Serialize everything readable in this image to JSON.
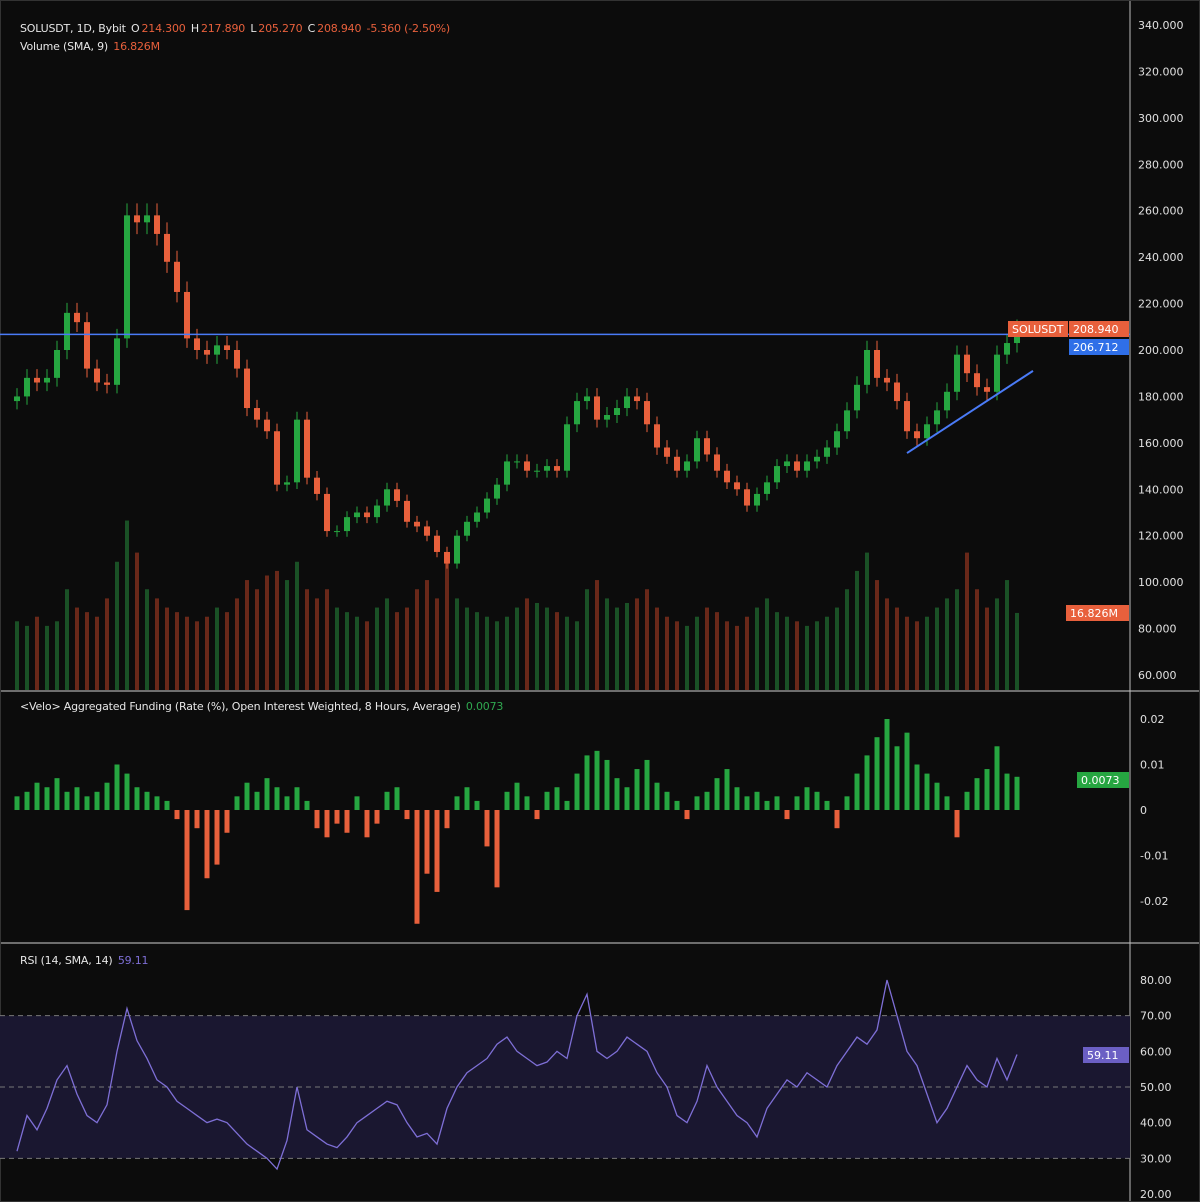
{
  "header": {
    "symbol": "SOLUSDT, 1D, Bybit",
    "o_label": "O",
    "open": "214.300",
    "h_label": "H",
    "high": "217.890",
    "l_label": "L",
    "low": "205.270",
    "c_label": "C",
    "close": "208.940",
    "change": "-5.360 (-2.50%)",
    "volume_label": "Volume (SMA, 9)",
    "volume_value": "16.826M"
  },
  "funding_pane": {
    "title": "<Velo> Aggregated Funding (Rate (%), Open Interest Weighted, 8 Hours, Average)",
    "value": "0.0073"
  },
  "rsi_pane": {
    "title": "RSI (14, SMA, 14)",
    "value": "59.11"
  },
  "tags": {
    "symbol_tag": "SOLUSDT",
    "last_price": "208.940",
    "hline_price": "206.712",
    "volume": "16.826M",
    "funding": "0.0073",
    "rsi": "59.11"
  },
  "colors": {
    "up": "#26a641",
    "down": "#e8603c",
    "hline": "#4a7bf7",
    "rsi": "#7e6fd6",
    "background": "#0c0c0c"
  },
  "chart_data": [
    {
      "type": "candlestick",
      "title": "SOLUSDT, 1D, Bybit",
      "ylim": [
        60,
        340
      ],
      "yticks": [
        "340.000",
        "320.000",
        "300.000",
        "280.000",
        "260.000",
        "240.000",
        "220.000",
        "200.000",
        "180.000",
        "160.000",
        "140.000",
        "120.000",
        "100.000",
        "80.000",
        "60.000"
      ],
      "close": [
        180,
        188,
        186,
        188,
        200,
        216,
        212,
        192,
        186,
        185,
        205,
        258,
        255,
        258,
        250,
        238,
        225,
        205,
        200,
        198,
        202,
        200,
        192,
        175,
        170,
        165,
        142,
        143,
        170,
        145,
        138,
        122,
        122,
        128,
        130,
        128,
        133,
        140,
        135,
        126,
        124,
        120,
        113,
        108,
        120,
        126,
        130,
        136,
        142,
        152,
        152,
        148,
        148,
        150,
        148,
        168,
        178,
        180,
        170,
        172,
        175,
        180,
        178,
        168,
        158,
        154,
        148,
        152,
        162,
        155,
        148,
        143,
        140,
        133,
        138,
        143,
        150,
        152,
        148,
        152,
        154,
        158,
        165,
        174,
        185,
        200,
        188,
        186,
        178,
        165,
        162,
        168,
        174,
        182,
        198,
        190,
        184,
        182,
        198,
        203,
        208.94
      ],
      "volume_millions": [
        15,
        14,
        16,
        14,
        15,
        22,
        18,
        17,
        16,
        20,
        28,
        37,
        30,
        22,
        20,
        18,
        17,
        16,
        15,
        16,
        18,
        17,
        20,
        24,
        22,
        25,
        26,
        24,
        28,
        22,
        20,
        22,
        18,
        17,
        16,
        15,
        18,
        20,
        17,
        18,
        22,
        24,
        20,
        28,
        20,
        18,
        17,
        16,
        15,
        16,
        18,
        20,
        19,
        18,
        17,
        16,
        15,
        22,
        24,
        20,
        18,
        19,
        20,
        22,
        18,
        16,
        15,
        14,
        16,
        18,
        17,
        15,
        14,
        16,
        18,
        20,
        17,
        16,
        15,
        14,
        15,
        16,
        18,
        22,
        26,
        30,
        24,
        20,
        18,
        16,
        15,
        16,
        18,
        20,
        22,
        30,
        22,
        18,
        20,
        24,
        16.826
      ],
      "horizontal_line": 206.712,
      "trendline": {
        "from": [
          89,
          155.6
        ],
        "to": [
          101.6,
          191
        ]
      }
    },
    {
      "type": "bar",
      "title": "<Velo> Aggregated Funding (Rate (%), Open Interest Weighted, 8 Hours, Average)",
      "ylim": [
        -0.03,
        0.025
      ],
      "yticks": [
        "0.02",
        "0.01",
        "0",
        "-0.01",
        "-0.02"
      ],
      "values": [
        0.003,
        0.004,
        0.006,
        0.005,
        0.007,
        0.004,
        0.005,
        0.003,
        0.004,
        0.006,
        0.01,
        0.008,
        0.005,
        0.004,
        0.003,
        0.002,
        -0.002,
        -0.022,
        -0.004,
        -0.015,
        -0.012,
        -0.005,
        0.003,
        0.006,
        0.004,
        0.007,
        0.005,
        0.003,
        0.005,
        0.002,
        -0.004,
        -0.006,
        -0.003,
        -0.005,
        0.003,
        -0.006,
        -0.003,
        0.004,
        0.005,
        -0.002,
        -0.025,
        -0.014,
        -0.018,
        -0.004,
        0.003,
        0.005,
        0.002,
        -0.008,
        -0.017,
        0.004,
        0.006,
        0.003,
        -0.002,
        0.004,
        0.005,
        0.002,
        0.008,
        0.012,
        0.013,
        0.011,
        0.007,
        0.005,
        0.009,
        0.011,
        0.006,
        0.004,
        0.002,
        -0.002,
        0.003,
        0.004,
        0.007,
        0.009,
        0.005,
        0.003,
        0.004,
        0.002,
        0.003,
        -0.002,
        0.003,
        0.005,
        0.004,
        0.002,
        -0.004,
        0.003,
        0.008,
        0.012,
        0.016,
        0.02,
        0.014,
        0.017,
        0.01,
        0.008,
        0.006,
        0.003,
        -0.006,
        0.004,
        0.007,
        0.009,
        0.014,
        0.008,
        0.0073
      ]
    },
    {
      "type": "line",
      "title": "RSI (14, SMA, 14)",
      "ylim": [
        20,
        85
      ],
      "yticks": [
        "80.00",
        "70.00",
        "60.00",
        "50.00",
        "40.00",
        "30.00",
        "20.00"
      ],
      "bands": [
        30,
        50,
        70
      ],
      "values": [
        32,
        42,
        38,
        44,
        52,
        56,
        48,
        42,
        40,
        45,
        60,
        72,
        63,
        58,
        52,
        50,
        46,
        44,
        42,
        40,
        41,
        40,
        37,
        34,
        32,
        30,
        27,
        35,
        50,
        38,
        36,
        34,
        33,
        36,
        40,
        42,
        44,
        46,
        45,
        40,
        36,
        37,
        34,
        44,
        50,
        54,
        56,
        58,
        62,
        64,
        60,
        58,
        56,
        57,
        60,
        58,
        70,
        76,
        60,
        58,
        60,
        64,
        62,
        60,
        54,
        50,
        42,
        40,
        46,
        56,
        50,
        46,
        42,
        40,
        36,
        44,
        48,
        52,
        50,
        54,
        52,
        50,
        56,
        60,
        64,
        62,
        66,
        80,
        70,
        60,
        56,
        48,
        40,
        44,
        50,
        56,
        52,
        50,
        58,
        52,
        59.11
      ]
    }
  ]
}
